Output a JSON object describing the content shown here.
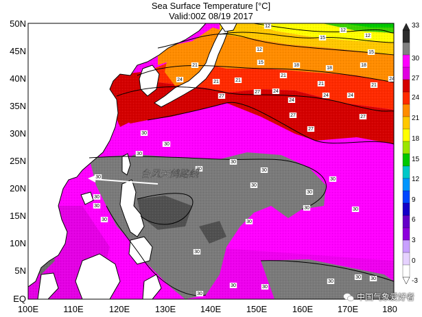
{
  "title": {
    "line1": "Sea Surface Temperature [°C]",
    "line2": "Valid:00Z 08/19 2017"
  },
  "axes": {
    "lat_labels": [
      "50N",
      "45N",
      "40N",
      "35N",
      "30N",
      "25N",
      "20N",
      "15N",
      "10N",
      "5N",
      "EQ"
    ],
    "lon_labels": [
      "100E",
      "110E",
      "120E",
      "130E",
      "140E",
      "150E",
      "160E",
      "170E",
      "180"
    ]
  },
  "colorbar": {
    "labels": [
      "33",
      "30",
      "27",
      "24",
      "21",
      "18",
      "15",
      "12",
      "9",
      "6",
      "3",
      "0",
      "-3"
    ],
    "colors": [
      "#2b2b2b",
      "#7f7f7f",
      "#ff00ff",
      "#e000e0",
      "#d40000",
      "#ff2a00",
      "#ff8c00",
      "#ffc800",
      "#ffff00",
      "#9be500",
      "#00c800",
      "#00c8c8",
      "#0096ff",
      "#0046ff",
      "#1400c8",
      "#6400c8",
      "#8c00dc",
      "#c8a0ff",
      "#e6d2ff",
      "#ffffff"
    ]
  },
  "annotation": {
    "text": "台风天鸽路线",
    "color": "#ffffff"
  },
  "isotherm_labels": {
    "values": [
      "12",
      "12",
      "12",
      "12",
      "15",
      "15",
      "15",
      "18",
      "18",
      "18",
      "21",
      "21",
      "21",
      "21",
      "21",
      "21",
      "24",
      "24",
      "24",
      "24",
      "24",
      "24",
      "27",
      "27",
      "27",
      "27",
      "27",
      "30",
      "30",
      "30",
      "30",
      "30",
      "30",
      "30",
      "30",
      "30",
      "30",
      "30",
      "30",
      "30",
      "30",
      "30",
      "30",
      "30",
      "30",
      "30",
      "30",
      "30",
      "30",
      "30",
      "30"
    ]
  },
  "watermark": {
    "text": "中国气象爱好者"
  }
}
